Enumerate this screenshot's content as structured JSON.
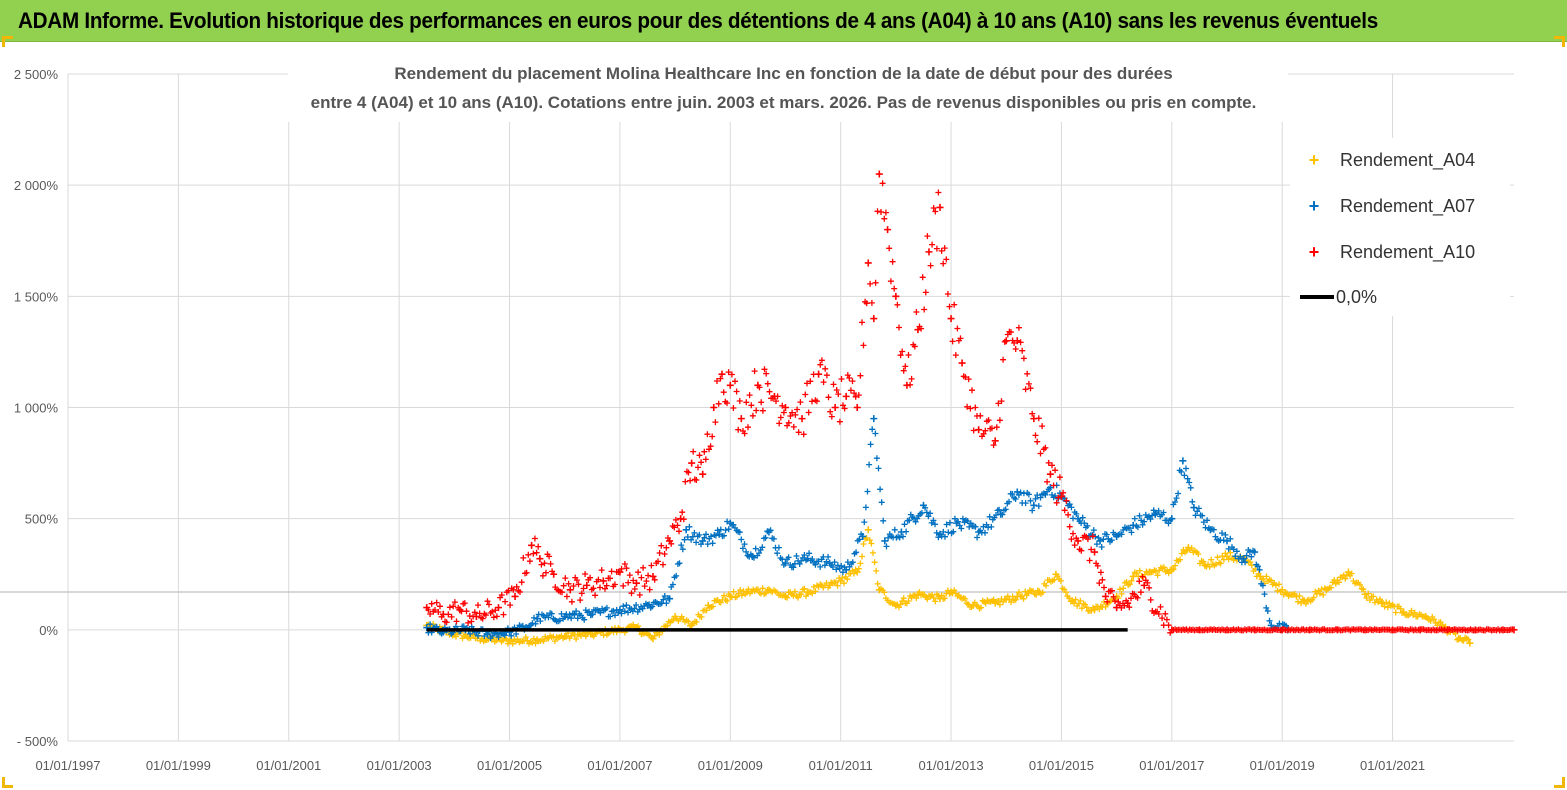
{
  "banner": {
    "title": "ADAM Informe. Evolution historique des performances en euros pour des détentions de 4 ans (A04) à 10 ans (A10) sans les revenus éventuels"
  },
  "colors": {
    "banner_bg": "#92d050",
    "a04": "#ffc000",
    "a07": "#0070c0",
    "a10": "#ff0000",
    "zero": "#000000",
    "grid": "#d9d9d9"
  },
  "chart_data": {
    "type": "scatter",
    "title_line1": "Rendement du placement Molina Healthcare Inc en fonction de la date de début pour des durées",
    "title_line2": "entre 4 (A04) et 10 ans (A10).  Cotations entre juin. 2003 et mars. 2026.  Pas de revenus disponibles ou pris en compte.",
    "xlabel": "",
    "ylabel": "",
    "xlim": [
      1997.0,
      2023.2
    ],
    "ylim": [
      -500,
      2500
    ],
    "x_ticks": [
      1997,
      1999,
      2001,
      2003,
      2005,
      2007,
      2009,
      2011,
      2013,
      2015,
      2017,
      2019,
      2021
    ],
    "x_tick_labels": [
      "01/01/1997",
      "01/01/1999",
      "01/01/2001",
      "01/01/2003",
      "01/01/2005",
      "01/01/2007",
      "01/01/2009",
      "01/01/2011",
      "01/01/2013",
      "01/01/2015",
      "01/01/2017",
      "01/01/2019",
      "01/01/2021"
    ],
    "y_ticks": [
      -500,
      0,
      500,
      1000,
      1500,
      2000,
      2500
    ],
    "y_tick_labels": [
      "- 500%",
      "0%",
      "500%",
      "1 000%",
      "1 500%",
      "2 000%",
      "2 500%"
    ],
    "ref_line_y": 170,
    "legend_position": "top-right",
    "series": [
      {
        "name": "Rendement_A04",
        "marker": "+",
        "x": [
          2003.5,
          2004.0,
          2004.5,
          2005.0,
          2005.5,
          2006.0,
          2006.5,
          2007.0,
          2007.3,
          2007.6,
          2008.0,
          2008.3,
          2008.6,
          2009.0,
          2009.3,
          2009.7,
          2010.0,
          2010.4,
          2010.8,
          2011.0,
          2011.3,
          2011.5,
          2011.7,
          2012.0,
          2012.4,
          2012.8,
          2013.0,
          2013.4,
          2013.8,
          2014.2,
          2014.6,
          2014.9,
          2015.2,
          2015.6,
          2016.0,
          2016.3,
          2016.6,
          2017.0,
          2017.3,
          2017.6,
          2018.0,
          2018.3,
          2018.6,
          2019.0,
          2019.4,
          2019.8,
          2020.2,
          2020.5,
          2020.8,
          2021.2,
          2021.6,
          2021.9,
          2022.2,
          2022.4
        ],
        "values": [
          20,
          -20,
          -40,
          -50,
          -45,
          -30,
          -20,
          0,
          10,
          -40,
          60,
          20,
          110,
          150,
          170,
          180,
          150,
          170,
          200,
          220,
          260,
          450,
          180,
          110,
          160,
          140,
          170,
          110,
          120,
          150,
          170,
          250,
          130,
          90,
          150,
          240,
          260,
          270,
          370,
          290,
          330,
          320,
          240,
          180,
          130,
          180,
          260,
          160,
          120,
          80,
          60,
          20,
          -40,
          -60
        ]
      },
      {
        "name": "Rendement_A07",
        "marker": "+",
        "x": [
          2003.5,
          2003.8,
          2004.2,
          2004.6,
          2005.0,
          2005.3,
          2005.5,
          2006.0,
          2006.5,
          2007.0,
          2007.5,
          2007.9,
          2008.2,
          2008.5,
          2008.8,
          2009.0,
          2009.4,
          2009.7,
          2010.0,
          2010.4,
          2010.8,
          2011.1,
          2011.4,
          2011.6,
          2011.8,
          2012.1,
          2012.5,
          2012.8,
          2013.1,
          2013.5,
          2013.9,
          2014.2,
          2014.5,
          2014.8,
          2015.0,
          2015.3,
          2015.7,
          2016.0,
          2016.3,
          2016.7,
          2017.0,
          2017.2,
          2017.4,
          2017.7,
          2018.0,
          2018.3,
          2018.5,
          2018.8,
          2019.1
        ],
        "values": [
          10,
          -10,
          0,
          -20,
          -10,
          10,
          50,
          60,
          70,
          90,
          110,
          140,
          450,
          400,
          430,
          480,
          330,
          440,
          300,
          320,
          300,
          270,
          420,
          950,
          400,
          440,
          560,
          430,
          480,
          440,
          520,
          620,
          560,
          640,
          600,
          500,
          400,
          420,
          470,
          520,
          500,
          760,
          550,
          450,
          400,
          320,
          350,
          20,
          0
        ]
      },
      {
        "name": "Rendement_A10",
        "marker": "+",
        "x": [
          2003.5,
          2003.8,
          2004.1,
          2004.4,
          2004.8,
          2005.1,
          2005.4,
          2005.55,
          2005.8,
          2006.1,
          2006.4,
          2006.7,
          2007.0,
          2007.3,
          2007.6,
          2007.9,
          2008.1,
          2008.3,
          2008.5,
          2008.7,
          2008.85,
          2009.0,
          2009.2,
          2009.5,
          2009.8,
          2010.0,
          2010.3,
          2010.6,
          2010.9,
          2011.1,
          2011.3,
          2011.5,
          2011.6,
          2011.7,
          2011.85,
          2012.0,
          2012.2,
          2012.4,
          2012.6,
          2012.8,
          2013.0,
          2013.2,
          2013.5,
          2013.8,
          2014.0,
          2014.2,
          2014.5,
          2014.8,
          2015.0,
          2015.3,
          2015.6,
          2015.8,
          2016.0,
          2016.2,
          2016.5,
          2017.0,
          2017.5,
          2018.0,
          2018.5,
          2019.0,
          2019.5,
          2020.0,
          2020.5,
          2021.0,
          2021.5,
          2022.0,
          2022.5,
          2023.0,
          2023.2
        ],
        "values": [
          100,
          70,
          90,
          60,
          100,
          150,
          380,
          320,
          250,
          180,
          200,
          220,
          260,
          210,
          240,
          400,
          500,
          750,
          700,
          1000,
          1150,
          1100,
          950,
          1100,
          1050,
          1000,
          950,
          1150,
          1000,
          1050,
          1000,
          1650,
          1400,
          2050,
          1800,
          1500,
          1100,
          1350,
          1700,
          1900,
          1400,
          1200,
          900,
          850,
          1300,
          1300,
          950,
          700,
          600,
          400,
          350,
          150,
          100,
          120,
          200,
          0,
          0,
          0,
          0,
          0,
          0,
          0,
          0,
          0,
          0,
          0,
          0,
          0,
          0
        ]
      },
      {
        "name": "0,0%",
        "type": "line",
        "x": [
          2003.5,
          2016.2
        ],
        "values": [
          0,
          0
        ]
      }
    ]
  },
  "legend": {
    "items": [
      {
        "label": "Rendement_A04",
        "symbol": "+"
      },
      {
        "label": "Rendement_A07",
        "symbol": "+"
      },
      {
        "label": "Rendement_A10",
        "symbol": "+"
      },
      {
        "label": "0,0%",
        "symbol": "line"
      }
    ]
  }
}
